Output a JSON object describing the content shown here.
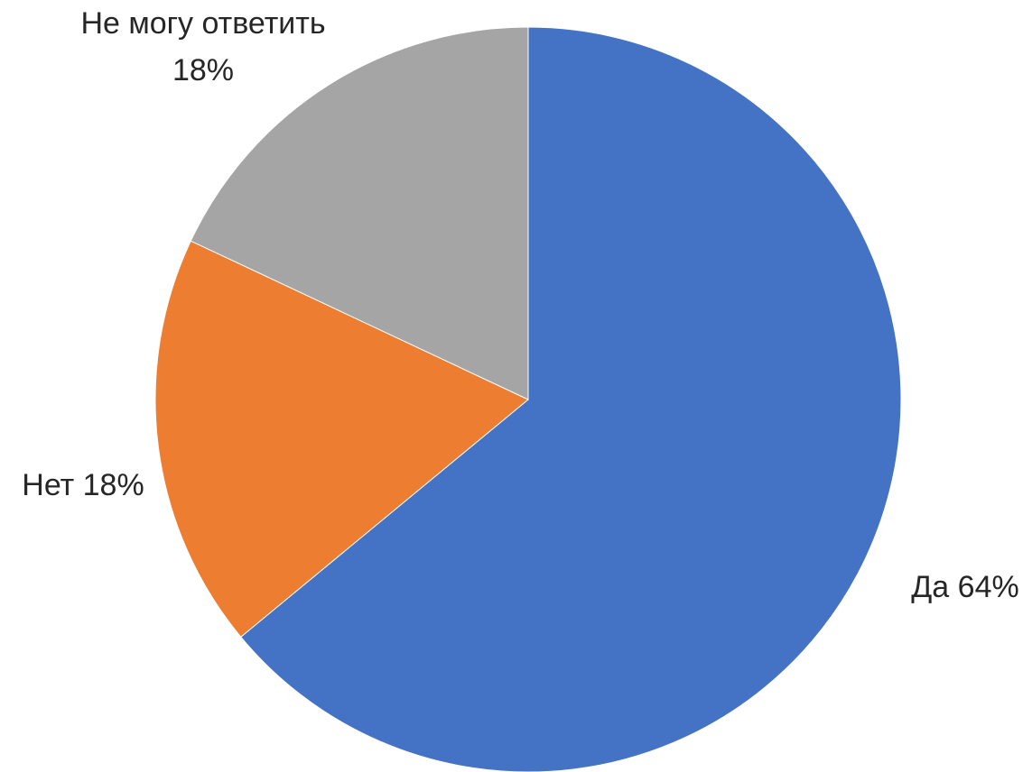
{
  "chart_data": {
    "type": "pie",
    "start_angle": "12 o'clock",
    "direction": "clockwise",
    "slices": [
      {
        "category": "Да",
        "value": 64,
        "label_lines": [
          "Да 64%"
        ],
        "color": "#4472C4"
      },
      {
        "category": "Нет",
        "value": 18,
        "label_lines": [
          "Нет 18%"
        ],
        "color": "#ED7D31"
      },
      {
        "category": "Не могу ответить",
        "value": 18,
        "label_lines": [
          "Не могу ответить",
          "18%"
        ],
        "color": "#A5A5A5"
      }
    ],
    "legend": false
  }
}
